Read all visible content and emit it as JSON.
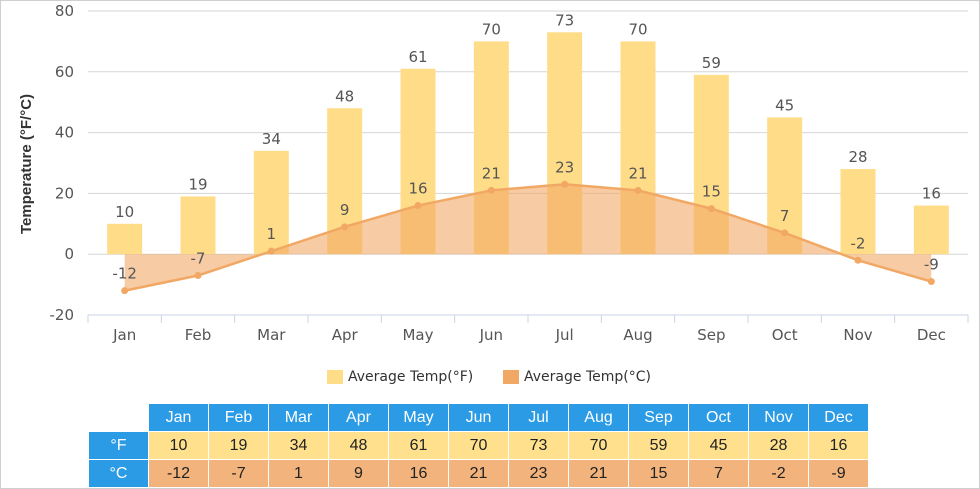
{
  "chart_data": {
    "type": "bar",
    "categories": [
      "Jan",
      "Feb",
      "Mar",
      "Apr",
      "May",
      "Jun",
      "Jul",
      "Aug",
      "Sep",
      "Oct",
      "Nov",
      "Dec"
    ],
    "series": [
      {
        "name": "Average Temp(°F)",
        "type": "bar",
        "values": [
          10,
          19,
          34,
          48,
          61,
          70,
          73,
          70,
          59,
          45,
          28,
          16
        ],
        "color": "#ffdd88"
      },
      {
        "name": "Average Temp(°C)",
        "type": "area",
        "values": [
          -12,
          -7,
          1,
          9,
          16,
          21,
          23,
          21,
          15,
          7,
          -2,
          -9
        ],
        "color": "#f2a865"
      }
    ],
    "ylabel": "Temperature (°F/°C)",
    "ylim": [
      -20,
      80
    ],
    "yticks": [
      -20,
      0,
      20,
      40,
      60,
      80
    ],
    "grid": true,
    "legend": "bottom-center"
  },
  "table": {
    "units": [
      "°F",
      "°C"
    ]
  },
  "colors": {
    "header_bg": "#2b9be6",
    "f_row": "#ffe08c",
    "c_row": "#f2b47c"
  }
}
